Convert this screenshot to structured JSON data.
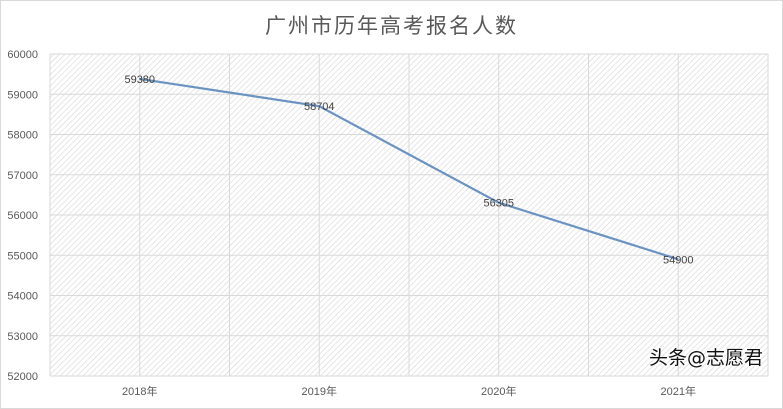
{
  "chart_data": {
    "type": "line",
    "title": "广州市历年高考报名人数",
    "categories": [
      "2018年",
      "2019年",
      "2020年",
      "2021年"
    ],
    "series": [
      {
        "values": [
          59380,
          58704,
          56305,
          54900
        ],
        "color": "#6b93c2"
      }
    ],
    "data_labels": [
      "59380",
      "58704",
      "56305",
      "54900"
    ],
    "ylim": [
      52000,
      60000
    ],
    "yticks": [
      52000,
      53000,
      54000,
      55000,
      56000,
      57000,
      58000,
      59000,
      60000
    ],
    "grid": true,
    "legend": "none"
  },
  "watermark": "头条@志愿君"
}
